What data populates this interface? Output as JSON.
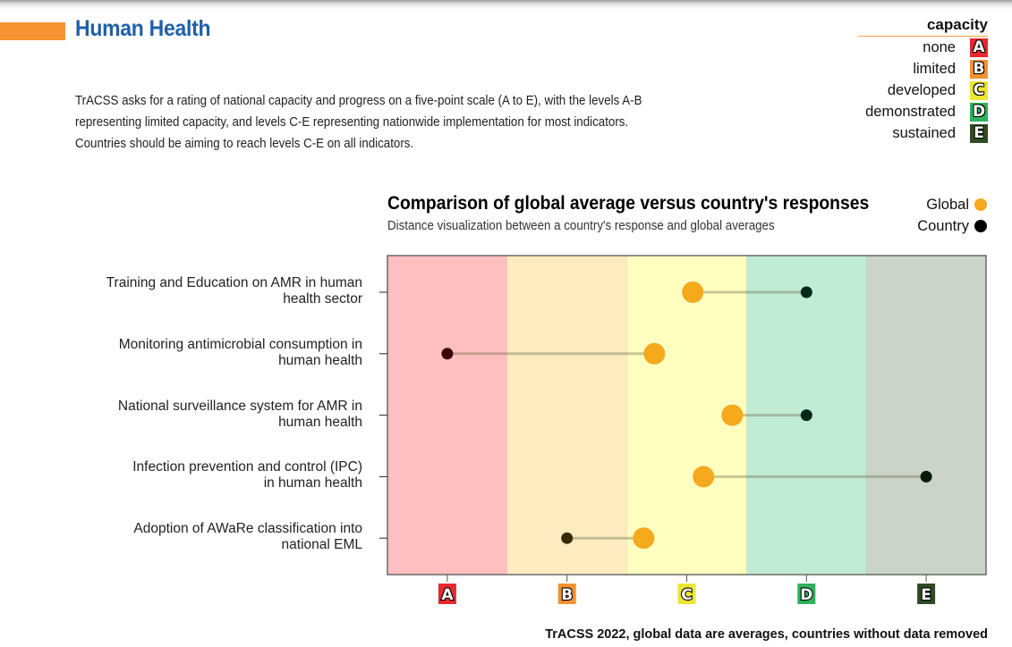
{
  "header": {
    "title": "Human Health",
    "intro": "TrACSS asks for a rating of national capacity and progress on a five-point scale (A to E), with the levels A-B representing limited capacity, and levels C-E representing nationwide implementation for most indicators. Countries should be aiming to reach levels C-E on all indicators."
  },
  "capacity_legend": {
    "title": "capacity",
    "items": [
      {
        "grade": "A",
        "label": "none",
        "color": "#e8282d"
      },
      {
        "grade": "B",
        "label": "limited",
        "color": "#f29131"
      },
      {
        "grade": "C",
        "label": "developed",
        "color": "#ede531"
      },
      {
        "grade": "D",
        "label": "demonstrated",
        "color": "#2eb25b"
      },
      {
        "grade": "E",
        "label": "sustained",
        "color": "#304a22"
      }
    ]
  },
  "series_legend": [
    {
      "label": "Global",
      "color": "#f5a91c"
    },
    {
      "label": "Country",
      "color": "#000000"
    }
  ],
  "footer": "TrACSS 2022, global data are averages, countries without data removed",
  "chart_data": {
    "type": "dumbbell",
    "title": "Comparison of global average versus country's responses",
    "subtitle": "Distance visualization between a country's response and global averages",
    "xlabel": "",
    "ylabel": "",
    "x_tick_labels": [
      "A",
      "B",
      "C",
      "D",
      "E"
    ],
    "x_tick_values": [
      1,
      2,
      3,
      4,
      5
    ],
    "xlim": [
      0.5,
      5.5
    ],
    "bands": [
      {
        "grade": "A",
        "from": 0.5,
        "to": 1.5,
        "color": "#ffbfc0"
      },
      {
        "grade": "B",
        "from": 1.5,
        "to": 2.5,
        "color": "#feecc0"
      },
      {
        "grade": "C",
        "from": 2.5,
        "to": 3.5,
        "color": "#ffffc0"
      },
      {
        "grade": "D",
        "from": 3.5,
        "to": 4.5,
        "color": "#c0ebd4"
      },
      {
        "grade": "E",
        "from": 4.5,
        "to": 5.5,
        "color": "#cbd4c9"
      }
    ],
    "categories": [
      "Training and Education on AMR in human health sector",
      "Monitoring antimicrobial consumption in human health",
      "National surveillance system for AMR in human health",
      "Infection prevention and control (IPC) in human health",
      "Adoption of AWaRe classification into national EML"
    ],
    "category_lines": [
      [
        "Training and Education on AMR in human",
        "health sector"
      ],
      [
        "Monitoring antimicrobial consumption in",
        "human health"
      ],
      [
        "National surveillance system for AMR in",
        "human health"
      ],
      [
        "Infection prevention and control (IPC)",
        "in human health"
      ],
      [
        "Adoption of AWaRe classification into",
        "national EML"
      ]
    ],
    "series": [
      {
        "name": "Global",
        "values": [
          3.05,
          2.73,
          3.38,
          3.14,
          2.64
        ]
      },
      {
        "name": "Country",
        "values": [
          4,
          1,
          4,
          5,
          2
        ]
      }
    ],
    "country_dot_colors": [
      "#00291a",
      "#3d0000",
      "#00291a",
      "#0a1a0a",
      "#3a2a00"
    ],
    "grid": false,
    "legend": "top-right"
  }
}
